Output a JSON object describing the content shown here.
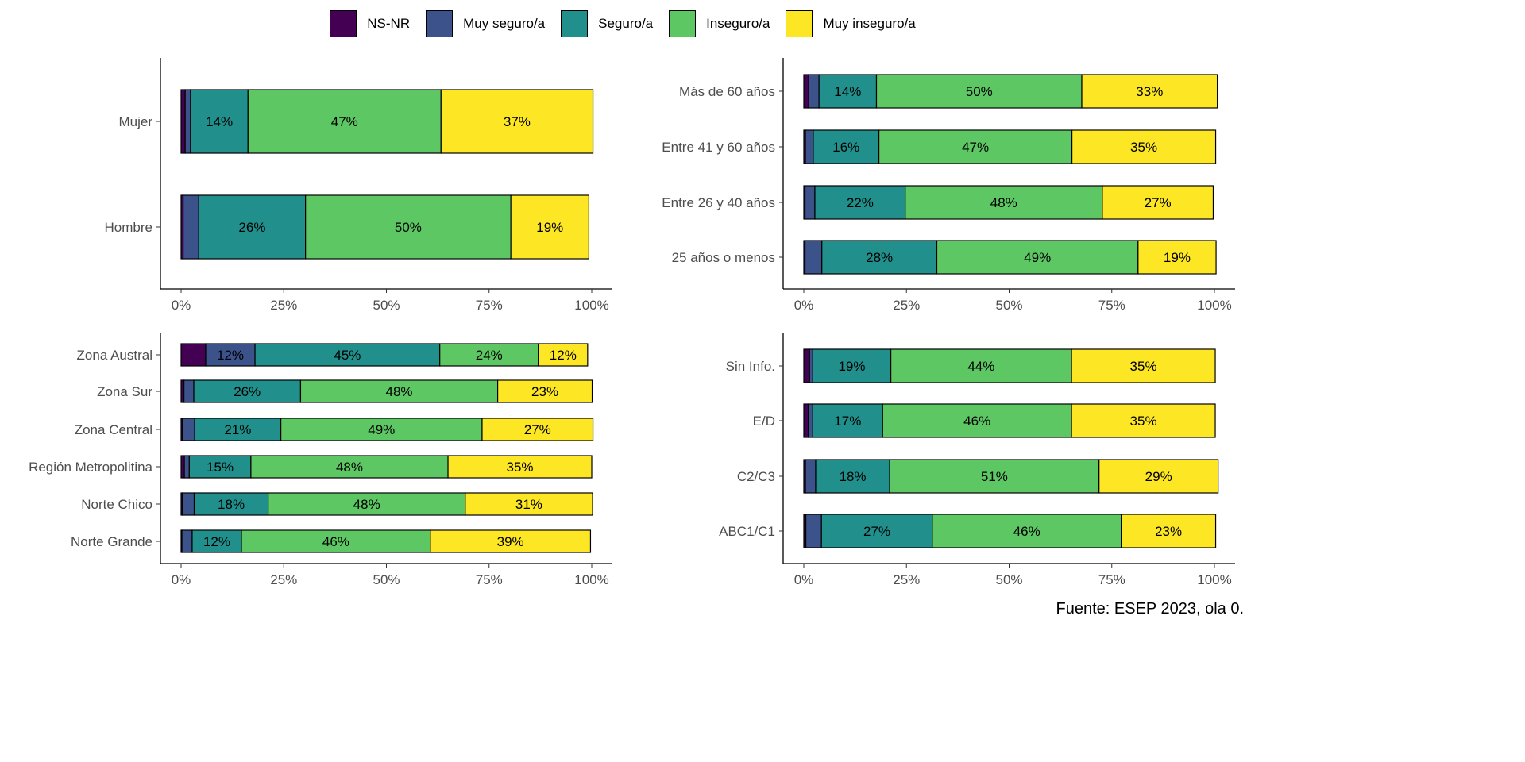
{
  "legend": [
    {
      "name": "NS-NR",
      "color": "#440154"
    },
    {
      "name": "Muy seguro/a",
      "color": "#3B528B"
    },
    {
      "name": "Seguro/a",
      "color": "#21908C"
    },
    {
      "name": "Inseguro/a",
      "color": "#5DC863"
    },
    {
      "name": "Muy inseguro/a",
      "color": "#FDE725"
    }
  ],
  "source": "Fuente: ESEP 2023, ola 0.",
  "chart_data": [
    {
      "type": "bar",
      "orientation": "horizontal",
      "stacked": true,
      "categories": [
        "Mujer",
        "Hombre"
      ],
      "series": [
        {
          "name": "NS-NR",
          "values": [
            1,
            0.5
          ]
        },
        {
          "name": "Muy seguro/a",
          "values": [
            1.3,
            3.8
          ]
        },
        {
          "name": "Seguro/a",
          "values": [
            14,
            26
          ]
        },
        {
          "name": "Inseguro/a",
          "values": [
            47,
            50
          ]
        },
        {
          "name": "Muy inseguro/a",
          "values": [
            37,
            19
          ]
        }
      ],
      "labels": [
        [
          "",
          "",
          "14%",
          "47%",
          "37%"
        ],
        [
          "",
          "",
          "26%",
          "50%",
          "19%"
        ]
      ],
      "xlim": [
        0,
        100
      ],
      "xticks": [
        "0%",
        "25%",
        "50%",
        "75%",
        "100%"
      ]
    },
    {
      "type": "bar",
      "orientation": "horizontal",
      "stacked": true,
      "categories": [
        "Más de 60 años",
        "Entre 41 y 60 años",
        "Entre 26 y 40 años",
        "25 años o menos"
      ],
      "series": [
        {
          "name": "NS-NR",
          "values": [
            1.2,
            0.4,
            0.3,
            0.3
          ]
        },
        {
          "name": "Muy seguro/a",
          "values": [
            2.5,
            1.9,
            2.4,
            4.1
          ]
        },
        {
          "name": "Seguro/a",
          "values": [
            14,
            16,
            22,
            28
          ]
        },
        {
          "name": "Inseguro/a",
          "values": [
            50,
            47,
            48,
            49
          ]
        },
        {
          "name": "Muy inseguro/a",
          "values": [
            33,
            35,
            27,
            19
          ]
        }
      ],
      "labels": [
        [
          "",
          "",
          "14%",
          "50%",
          "33%"
        ],
        [
          "",
          "",
          "16%",
          "47%",
          "35%"
        ],
        [
          "",
          "",
          "22%",
          "48%",
          "27%"
        ],
        [
          "",
          "",
          "28%",
          "49%",
          "19%"
        ]
      ],
      "xlim": [
        0,
        100
      ],
      "xticks": [
        "0%",
        "25%",
        "50%",
        "75%",
        "100%"
      ]
    },
    {
      "type": "bar",
      "orientation": "horizontal",
      "stacked": true,
      "categories": [
        "Zona Austral",
        "Zona Sur",
        "Zona Central",
        "Región Metropolitina",
        "Norte Chico",
        "Norte Grande"
      ],
      "series": [
        {
          "name": "NS-NR",
          "values": [
            6,
            0.7,
            0.3,
            0.8,
            0.3,
            0.2
          ]
        },
        {
          "name": "Muy seguro/a",
          "values": [
            12,
            2.4,
            3,
            1.2,
            2.9,
            2.5
          ]
        },
        {
          "name": "Seguro/a",
          "values": [
            45,
            26,
            21,
            15,
            18,
            12
          ]
        },
        {
          "name": "Inseguro/a",
          "values": [
            24,
            48,
            49,
            48,
            48,
            46
          ]
        },
        {
          "name": "Muy inseguro/a",
          "values": [
            12,
            23,
            27,
            35,
            31,
            39
          ]
        }
      ],
      "labels": [
        [
          "",
          "12%",
          "45%",
          "24%",
          "12%"
        ],
        [
          "",
          "",
          "26%",
          "48%",
          "23%"
        ],
        [
          "",
          "",
          "21%",
          "49%",
          "27%"
        ],
        [
          "",
          "",
          "15%",
          "48%",
          "35%"
        ],
        [
          "",
          "",
          "18%",
          "48%",
          "31%"
        ],
        [
          "",
          "",
          "12%",
          "46%",
          "39%"
        ]
      ],
      "xlim": [
        0,
        100
      ],
      "xticks": [
        "0%",
        "25%",
        "50%",
        "75%",
        "100%"
      ]
    },
    {
      "type": "bar",
      "orientation": "horizontal",
      "stacked": true,
      "categories": [
        "Sin Info.",
        "E/D",
        "C2/C3",
        "ABC1/C1"
      ],
      "series": [
        {
          "name": "NS-NR",
          "values": [
            1.4,
            1.1,
            0.4,
            0.5
          ]
        },
        {
          "name": "Muy seguro/a",
          "values": [
            0.8,
            1.1,
            2.5,
            3.8
          ]
        },
        {
          "name": "Seguro/a",
          "values": [
            19,
            17,
            18,
            27
          ]
        },
        {
          "name": "Inseguro/a",
          "values": [
            44,
            46,
            51,
            46
          ]
        },
        {
          "name": "Muy inseguro/a",
          "values": [
            35,
            35,
            29,
            23
          ]
        }
      ],
      "labels": [
        [
          "",
          "",
          "19%",
          "44%",
          "35%"
        ],
        [
          "",
          "",
          "17%",
          "46%",
          "35%"
        ],
        [
          "",
          "",
          "18%",
          "51%",
          "29%"
        ],
        [
          "",
          "",
          "27%",
          "46%",
          "23%"
        ]
      ],
      "xlim": [
        0,
        100
      ],
      "xticks": [
        "0%",
        "25%",
        "50%",
        "75%",
        "100%"
      ]
    }
  ]
}
